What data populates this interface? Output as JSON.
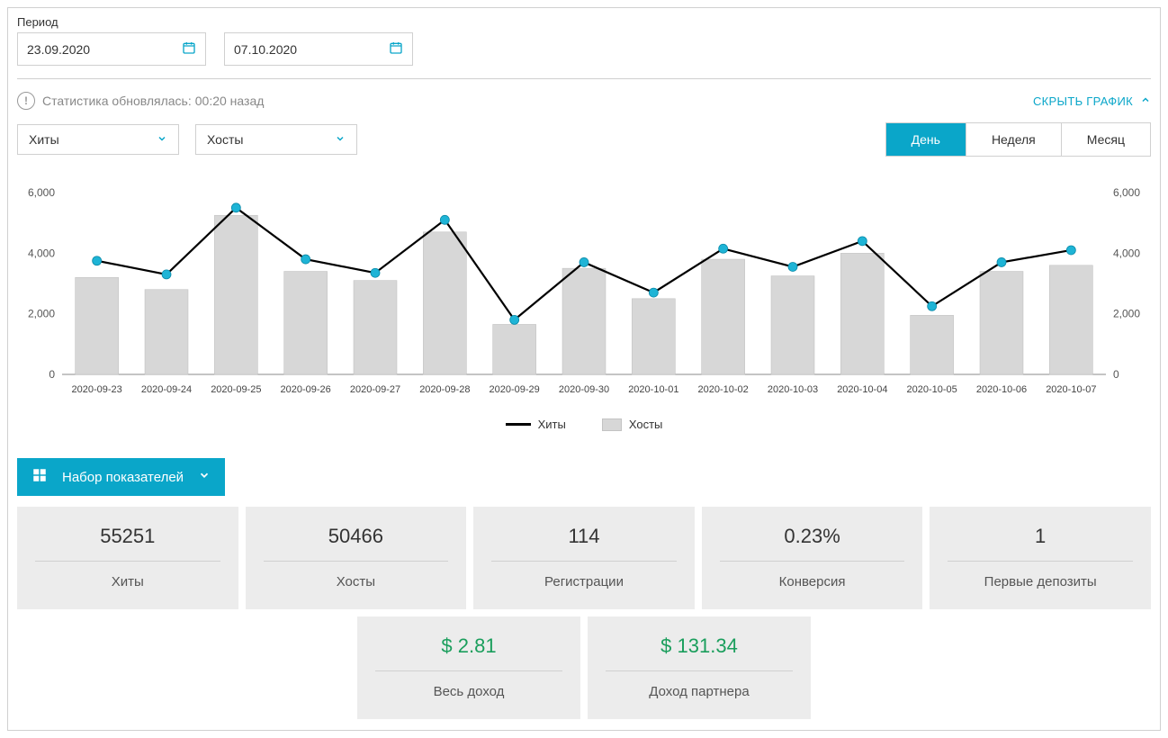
{
  "period": {
    "label": "Период",
    "from": "23.09.2020",
    "to": "07.10.2020"
  },
  "status": {
    "text_prefix": "Статистика обновлялась:",
    "text_time": "00:20 назад"
  },
  "hide_chart_label": "СКРЫТЬ ГРАФИК",
  "selects": {
    "metric1": "Хиты",
    "metric2": "Хосты"
  },
  "time_tabs": {
    "day": "День",
    "week": "Неделя",
    "month": "Месяц",
    "active": "day"
  },
  "chart": {
    "type": "combo-bar-line",
    "categories": [
      "2020-09-23",
      "2020-09-24",
      "2020-09-25",
      "2020-09-26",
      "2020-09-27",
      "2020-09-28",
      "2020-09-29",
      "2020-09-30",
      "2020-10-01",
      "2020-10-02",
      "2020-10-03",
      "2020-10-04",
      "2020-10-05",
      "2020-10-06",
      "2020-10-07"
    ],
    "line_values": [
      3750,
      3300,
      5500,
      3800,
      3350,
      5100,
      1800,
      3700,
      2700,
      4150,
      3550,
      4400,
      2250,
      3700,
      4100
    ],
    "bar_values": [
      3200,
      2800,
      5250,
      3400,
      3100,
      4700,
      1650,
      3500,
      2500,
      3800,
      3250,
      4000,
      1950,
      3400,
      3600
    ],
    "y_ticks": [
      0,
      2000,
      4000,
      6000
    ],
    "y_tick_labels": [
      "0",
      "2,000",
      "4,000",
      "6,000"
    ],
    "ylim": [
      0,
      6000
    ],
    "line_color": "#000000",
    "marker_color": "#1eb4d6",
    "marker_radius": 5,
    "line_width": 2.2,
    "bar_color": "#d7d7d7",
    "bar_border": "#c3c3c3",
    "bar_width": 0.62,
    "background": "#ffffff",
    "axis_color": "#555555"
  },
  "legend": {
    "line": "Хиты",
    "bar": "Хосты"
  },
  "metrics_button": "Набор показателей",
  "cards": {
    "hits": {
      "value": "55251",
      "label": "Хиты"
    },
    "hosts": {
      "value": "50466",
      "label": "Хосты"
    },
    "regs": {
      "value": "114",
      "label": "Регистрации"
    },
    "conv": {
      "value": "0.23%",
      "label": "Конверсия"
    },
    "fdep": {
      "value": "1",
      "label": "Первые депозиты"
    },
    "allinc": {
      "value": "$ 2.81",
      "label": "Весь доход"
    },
    "partinc": {
      "value": "$ 131.34",
      "label": "Доход партнера"
    }
  },
  "colors": {
    "accent": "#0aa6c9",
    "card_bg": "#ececec",
    "border": "#d0d0d0",
    "green": "#1a9e5c"
  }
}
